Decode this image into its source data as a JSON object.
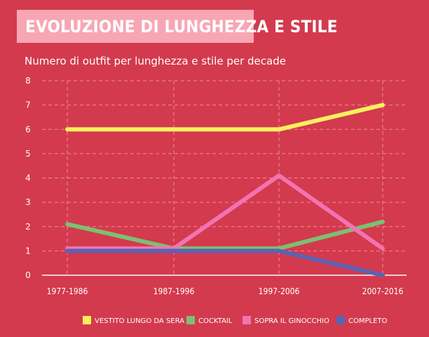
{
  "title": "EVOLUZIONE DI LUNGHEZZA E STILE",
  "subtitle": "Numero di outfit per lunghezza e stile per decade",
  "colors": {
    "background": "#d33a4e",
    "banner": "#f7a6b4",
    "text": "#ffffff",
    "grid": "#f08a98"
  },
  "chart_data": {
    "type": "line",
    "categories": [
      "1977-1986",
      "1987-1996",
      "1997-2006",
      "2007-2016"
    ],
    "ylim": [
      0,
      8
    ],
    "yticks": [
      0,
      1,
      2,
      3,
      4,
      5,
      6,
      7,
      8
    ],
    "grid": true,
    "legend_position": "bottom",
    "series": [
      {
        "name": "VESTITO LUNGO DA SERA",
        "color": "#f6f05e",
        "values": [
          6,
          6,
          6,
          7
        ]
      },
      {
        "name": "COCKTAIL",
        "color": "#7dbf72",
        "values": [
          2.1,
          1.1,
          1.1,
          2.2
        ]
      },
      {
        "name": "SOPRA IL GINOCCHIO",
        "color": "#f273b0",
        "values": [
          1.1,
          1.1,
          4.1,
          1.1
        ]
      },
      {
        "name": "COMPLETO",
        "color": "#5a63b3",
        "values": [
          1,
          1,
          1,
          0
        ]
      }
    ]
  }
}
